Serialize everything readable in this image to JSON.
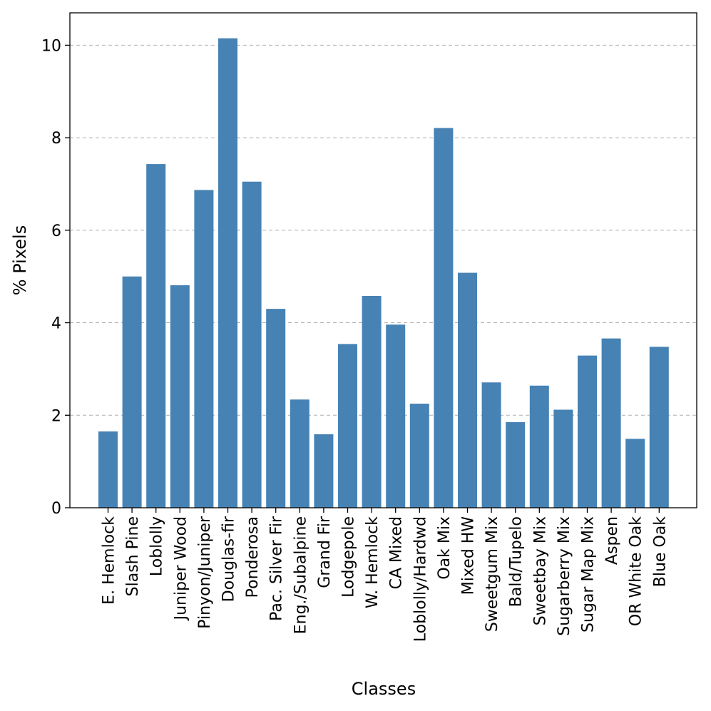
{
  "chart_data": {
    "type": "bar",
    "title": "",
    "xlabel": "Classes",
    "ylabel": "% Pixels",
    "ylim": [
      0,
      10.7
    ],
    "yticks": [
      0,
      2,
      4,
      6,
      8,
      10
    ],
    "grid": "y-dashed",
    "bar_color": "#4682b4",
    "categories": [
      "E. Hemlock",
      "Slash Pine",
      "Loblolly",
      "Juniper Wood",
      "Pinyon/Juniper",
      "Douglas-fir",
      "Ponderosa",
      "Pac. Silver Fir",
      "Eng./Subalpine",
      "Grand Fir",
      "Lodgepole",
      "W. Hemlock",
      "CA Mixed",
      "Loblolly/Hardwd",
      "Oak Mix",
      "Mixed HW",
      "Sweetgum Mix",
      "Bald/Tupelo",
      "Sweetbay Mix",
      "Sugarberry Mix",
      "Sugar Map Mix",
      "Aspen",
      "OR White Oak",
      "Blue Oak"
    ],
    "values": [
      1.65,
      5.0,
      7.43,
      4.81,
      6.87,
      10.15,
      7.05,
      4.3,
      2.34,
      1.59,
      3.54,
      4.58,
      3.96,
      2.25,
      8.21,
      5.08,
      2.71,
      1.85,
      2.64,
      2.12,
      3.29,
      3.66,
      1.49,
      3.48
    ]
  }
}
